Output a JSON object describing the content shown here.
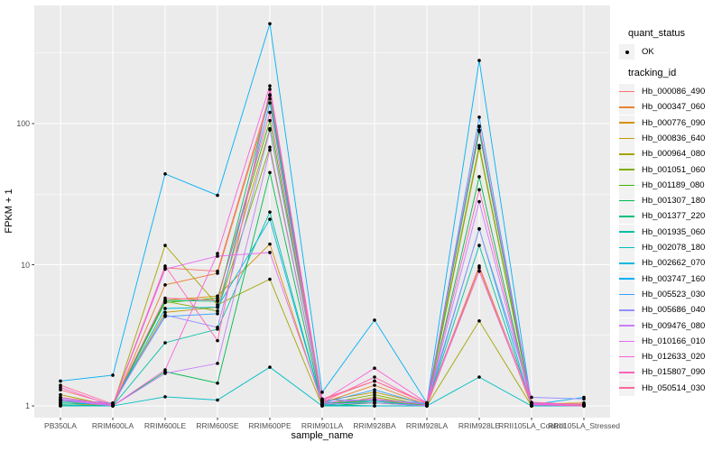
{
  "figure": {
    "bg": "#FFFFFF",
    "panel_bg": "#EBEBEB",
    "grid_color": "#FFFFFF",
    "tick_mark_color": "#333333",
    "tick_label_color": "#4D4D4D",
    "point_color": "#000000"
  },
  "chart_data": {
    "type": "line",
    "title": "",
    "xlabel": "sample_name",
    "ylabel": "FPKM + 1",
    "y_scale": "log10",
    "y_ticks": [
      1,
      10,
      100
    ],
    "y_minor_ticks": [
      3.162,
      31.62,
      316.2
    ],
    "ylim_log": [
      0.92,
      600
    ],
    "grid": true,
    "legend_position": "right",
    "point_marker": "black-dot",
    "categories": [
      "PB350LA",
      "RRIM600LA",
      "RRIM600LE",
      "RRIM600SE",
      "RRIM600PE",
      "RRIM901LA",
      "RRIM928BA",
      "RRIM928LA",
      "RRIM928LE",
      "RRII105LA_Control",
      "RRII105LA_Stressed"
    ],
    "series": [
      {
        "name": "Hb_000086_490",
        "color": "#F8766D",
        "values": [
          1.3,
          1.02,
          9.5,
          9.0,
          160,
          1.1,
          1.5,
          1.05,
          90,
          1.05,
          1.02
        ]
      },
      {
        "name": "Hb_000347_060",
        "color": "#EA8331",
        "values": [
          1.1,
          1.0,
          7.2,
          8.7,
          150,
          1.05,
          1.4,
          1.02,
          95,
          1.02,
          1.0
        ]
      },
      {
        "name": "Hb_000776_090",
        "color": "#D89000",
        "values": [
          1.05,
          1.0,
          5.6,
          6.0,
          14.0,
          1.02,
          1.1,
          1.0,
          9.5,
          1.0,
          1.02
        ]
      },
      {
        "name": "Hb_000836_640",
        "color": "#C09B00",
        "values": [
          1.15,
          1.02,
          4.6,
          5.0,
          92,
          1.08,
          1.25,
          1.03,
          70,
          1.03,
          1.05
        ]
      },
      {
        "name": "Hb_000964_080",
        "color": "#A3A500",
        "values": [
          1.2,
          1.0,
          13.7,
          5.2,
          7.9,
          1.0,
          1.15,
          1.0,
          4.0,
          1.0,
          1.0
        ]
      },
      {
        "name": "Hb_001051_060",
        "color": "#7CAE00",
        "values": [
          1.02,
          1.0,
          5.5,
          4.7,
          68,
          1.03,
          1.2,
          1.0,
          67,
          1.02,
          1.0
        ]
      },
      {
        "name": "Hb_001189_080",
        "color": "#39B600",
        "values": [
          1.05,
          1.03,
          5.4,
          5.8,
          105,
          1.06,
          1.05,
          1.02,
          90,
          1.0,
          1.03
        ]
      },
      {
        "name": "Hb_001307_180",
        "color": "#00BB4E",
        "values": [
          1.0,
          1.0,
          1.75,
          1.45,
          45,
          1.0,
          1.05,
          1.0,
          42,
          1.0,
          1.0
        ]
      },
      {
        "name": "Hb_001377_220",
        "color": "#00BF7D",
        "values": [
          1.08,
          1.02,
          5.6,
          5.5,
          158,
          1.04,
          1.1,
          1.03,
          88,
          1.02,
          1.0
        ]
      },
      {
        "name": "Hb_001935_060",
        "color": "#00C1A3",
        "values": [
          1.02,
          1.0,
          2.8,
          3.5,
          23.6,
          1.02,
          1.0,
          1.0,
          13.7,
          1.0,
          1.0
        ]
      },
      {
        "name": "Hb_002078_180",
        "color": "#00BFC4",
        "values": [
          1.0,
          1.0,
          1.16,
          1.1,
          1.88,
          1.0,
          1.0,
          1.0,
          1.6,
          1.0,
          1.0
        ]
      },
      {
        "name": "Hb_002662_070",
        "color": "#00BBDB",
        "values": [
          1.05,
          1.02,
          4.9,
          5.0,
          21,
          1.02,
          1.08,
          1.0,
          18,
          1.0,
          1.02
        ]
      },
      {
        "name": "Hb_003747_160",
        "color": "#00B0F6",
        "values": [
          1.5,
          1.65,
          44,
          31,
          510,
          1.25,
          4.05,
          1.05,
          280,
          1.02,
          1.15
        ]
      },
      {
        "name": "Hb_005523_030",
        "color": "#35A2FF",
        "values": [
          1.1,
          1.05,
          4.3,
          4.5,
          140,
          1.05,
          1.3,
          1.02,
          111,
          1.05,
          1.02
        ]
      },
      {
        "name": "Hb_005686_040",
        "color": "#9590FF",
        "values": [
          1.12,
          1.03,
          4.4,
          3.6,
          90,
          1.1,
          1.1,
          1.05,
          17.9,
          1.15,
          1.12
        ]
      },
      {
        "name": "Hb_009476_080",
        "color": "#C77CFF",
        "values": [
          1.1,
          1.0,
          1.7,
          2.0,
          65,
          1.03,
          1.05,
          1.0,
          28,
          1.02,
          1.0
        ]
      },
      {
        "name": "Hb_010166_010",
        "color": "#E76BF3",
        "values": [
          1.1,
          1.02,
          9.3,
          11.5,
          12.2,
          1.05,
          1.12,
          1.02,
          9.0,
          1.03,
          1.02
        ]
      },
      {
        "name": "Hb_012633_020",
        "color": "#FA62DB",
        "values": [
          1.35,
          1.0,
          1.8,
          12.0,
          185,
          1.08,
          1.85,
          1.05,
          96,
          1.04,
          1.03
        ]
      },
      {
        "name": "Hb_015807_090",
        "color": "#FF62BC",
        "values": [
          1.15,
          1.02,
          9.8,
          2.9,
          175,
          1.06,
          1.6,
          1.03,
          34,
          1.02,
          1.0
        ]
      },
      {
        "name": "Hb_050514_030",
        "color": "#FF6A98",
        "values": [
          1.4,
          1.03,
          5.8,
          5.6,
          120,
          1.12,
          1.5,
          1.04,
          9.8,
          1.06,
          1.02
        ]
      }
    ]
  },
  "legend": {
    "quant_status": {
      "title": "quant_status",
      "items": [
        {
          "label": "OK",
          "marker": "point-icon",
          "color": "#000000"
        }
      ]
    },
    "tracking_id": {
      "title": "tracking_id"
    }
  }
}
